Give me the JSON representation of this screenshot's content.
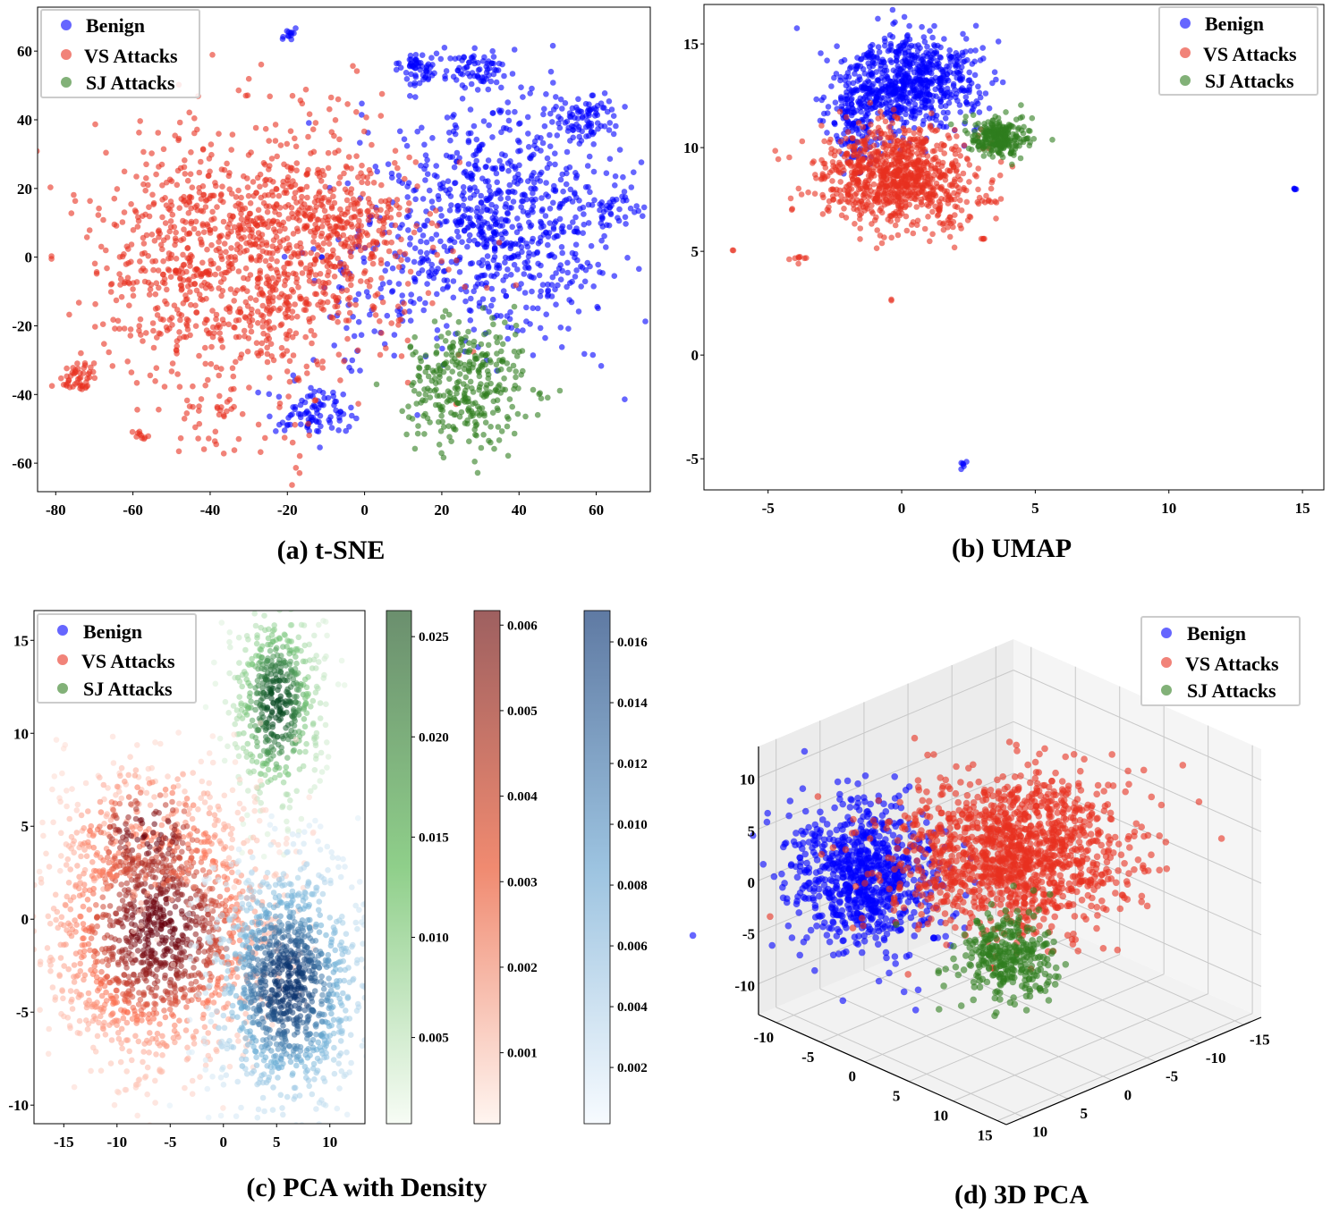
{
  "legend_colors": {
    "Benign": "#0000ff",
    "VS Attacks": "#e8301f",
    "SJ Attacks": "#2e7d1e"
  },
  "chart_data": [
    {
      "type": "scatter",
      "title": "(a) t-SNE",
      "xlim": [
        -84.7,
        74
      ],
      "ylim": [
        -68.3,
        72.8
      ],
      "xticks": [
        -80,
        -60,
        -40,
        -20,
        0,
        20,
        40,
        60
      ],
      "yticks": [
        60,
        40,
        20,
        0,
        -20,
        -40,
        -60
      ],
      "grid": false,
      "legend": {
        "placement": "top-left",
        "entries": [
          "Benign",
          "VS Attacks",
          "SJ Attacks"
        ]
      },
      "series": [
        {
          "name": "Benign",
          "color": "#0000ff",
          "clusters": [
            {
              "center": [
                35,
                10
              ],
              "spread": [
                16,
                17
              ],
              "count": 800
            },
            {
              "center": [
                14,
                55
              ],
              "spread": [
                3,
                3
              ],
              "count": 60
            },
            {
              "center": [
                28,
                55
              ],
              "spread": [
                4,
                3
              ],
              "count": 70
            },
            {
              "center": [
                56,
                40
              ],
              "spread": [
                5,
                4
              ],
              "count": 90
            },
            {
              "center": [
                63,
                15
              ],
              "spread": [
                3,
                2
              ],
              "count": 20
            },
            {
              "center": [
                -20,
                65
              ],
              "spread": [
                1,
                1
              ],
              "count": 12
            },
            {
              "center": [
                -13,
                -45
              ],
              "spread": [
                5,
                4
              ],
              "count": 90
            },
            {
              "center": [
                5,
                -10
              ],
              "spread": [
                12,
                12
              ],
              "count": 80
            }
          ]
        },
        {
          "name": "VS Attacks",
          "color": "#e8301f",
          "clusters": [
            {
              "center": [
                -30,
                0
              ],
              "spread": [
                20,
                19
              ],
              "count": 1200
            },
            {
              "center": [
                -5,
                12
              ],
              "spread": [
                10,
                8
              ],
              "count": 150
            },
            {
              "center": [
                -74,
                -35
              ],
              "spread": [
                2.5,
                2.5
              ],
              "count": 50
            },
            {
              "center": [
                -58,
                -52
              ],
              "spread": [
                1,
                0.8
              ],
              "count": 10
            },
            {
              "center": [
                -38,
                -48
              ],
              "spread": [
                6,
                4
              ],
              "count": 30
            }
          ]
        },
        {
          "name": "SJ Attacks",
          "color": "#2e7d1e",
          "clusters": [
            {
              "center": [
                27,
                -38
              ],
              "spread": [
                8,
                9
              ],
              "count": 320
            }
          ]
        }
      ]
    },
    {
      "type": "scatter",
      "title": "(b) UMAP",
      "xlim": [
        -7.4,
        15.8
      ],
      "ylim": [
        -6.5,
        16.9
      ],
      "xticks": [
        -5,
        0,
        5,
        10,
        15
      ],
      "yticks": [
        15,
        10,
        5,
        0,
        -5
      ],
      "grid": false,
      "legend": {
        "placement": "top-right",
        "entries": [
          "Benign",
          "VS Attacks",
          "SJ Attacks"
        ]
      },
      "series": [
        {
          "name": "Benign",
          "color": "#0000ff",
          "clusters": [
            {
              "center": [
                0.3,
                13.2
              ],
              "spread": [
                1.3,
                1.1
              ],
              "count": 700
            },
            {
              "center": [
                -1.6,
                11
              ],
              "spread": [
                0.6,
                1
              ],
              "count": 150
            },
            {
              "center": [
                14.7,
                8
              ],
              "spread": [
                0.03,
                0.03
              ],
              "count": 5
            },
            {
              "center": [
                2.3,
                -5.2
              ],
              "spread": [
                0.05,
                0.15
              ],
              "count": 6
            }
          ]
        },
        {
          "name": "VS Attacks",
          "color": "#e8301f",
          "clusters": [
            {
              "center": [
                -0.2,
                8.6
              ],
              "spread": [
                1.4,
                1.2
              ],
              "count": 900
            },
            {
              "center": [
                -3.8,
                4.6
              ],
              "spread": [
                0.15,
                0.1
              ],
              "count": 8
            },
            {
              "center": [
                -6.3,
                5
              ],
              "spread": [
                0.03,
                0.03
              ],
              "count": 2
            },
            {
              "center": [
                -4.1,
                7
              ],
              "spread": [
                0.03,
                0.03
              ],
              "count": 2
            },
            {
              "center": [
                -0.4,
                2.7
              ],
              "spread": [
                0.03,
                0.03
              ],
              "count": 2
            },
            {
              "center": [
                3.1,
                5.6
              ],
              "spread": [
                0.1,
                0.05
              ],
              "count": 4
            },
            {
              "center": [
                3.2,
                7.5
              ],
              "spread": [
                0.15,
                0.1
              ],
              "count": 6
            }
          ]
        },
        {
          "name": "SJ Attacks",
          "color": "#2e7d1e",
          "clusters": [
            {
              "center": [
                3.7,
                10.5
              ],
              "spread": [
                0.55,
                0.45
              ],
              "count": 260
            }
          ]
        }
      ]
    },
    {
      "type": "scatter",
      "title": "(c) PCA with Density",
      "xlim": [
        -17.8,
        13.3
      ],
      "ylim": [
        -11,
        16.6
      ],
      "xticks": [
        -15,
        -10,
        -5,
        0,
        5,
        10
      ],
      "yticks": [
        15,
        10,
        5,
        0,
        -5,
        -10
      ],
      "grid": false,
      "legend": {
        "placement": "top-left",
        "entries": [
          "Benign",
          "VS Attacks",
          "SJ Attacks"
        ]
      },
      "series": [
        {
          "name": "SJ Attacks",
          "colormap": "Greens",
          "clusters": [
            {
              "center": [
                5,
                11.5
              ],
              "spread": [
                2.2,
                2.8
              ],
              "count": 500
            }
          ]
        },
        {
          "name": "VS Attacks",
          "colormap": "Reds",
          "clusters": [
            {
              "center": [
                -6,
                -0.5
              ],
              "spread": [
                5.5,
                3.8
              ],
              "count": 1400
            },
            {
              "center": [
                -7,
                4.5
              ],
              "spread": [
                4,
                2
              ],
              "count": 250
            }
          ]
        },
        {
          "name": "Benign",
          "colormap": "Blues",
          "clusters": [
            {
              "center": [
                6,
                -3.5
              ],
              "spread": [
                3.6,
                3.4
              ],
              "count": 1100
            }
          ]
        }
      ],
      "colorbars": [
        {
          "colormap": "Greens",
          "range": [
            0.0007,
            0.0263
          ],
          "ticks": [
            "0.025",
            "0.020",
            "0.015",
            "0.010",
            "0.005"
          ]
        },
        {
          "colormap": "Reds",
          "range": [
            0.00017,
            0.00617
          ],
          "ticks": [
            "0.006",
            "0.005",
            "0.004",
            "0.003",
            "0.002",
            "0.001"
          ]
        },
        {
          "colormap": "Blues",
          "range": [
            0.00015,
            0.01703
          ],
          "ticks": [
            "0.016",
            "0.014",
            "0.012",
            "0.010",
            "0.008",
            "0.006",
            "0.004",
            "0.002"
          ]
        }
      ]
    },
    {
      "type": "scatter3d",
      "title": "(d) 3D PCA",
      "xlim": [
        -12,
        16
      ],
      "ylim": [
        -17,
        12
      ],
      "zlim": [
        -13,
        13
      ],
      "xticks": [
        -10,
        -5,
        0,
        5,
        10,
        15
      ],
      "yticks": [
        -15,
        -10,
        -5,
        0,
        5,
        10
      ],
      "zticks": [
        -10,
        -5,
        0,
        5,
        10
      ],
      "grid": true,
      "legend": {
        "placement": "top-right",
        "entries": [
          "Benign",
          "VS Attacks",
          "SJ Attacks"
        ]
      },
      "series": [
        {
          "name": "Benign",
          "color": "#0000ff",
          "clusters": [
            {
              "center": [
                -6,
                6,
                0.5
              ],
              "spread": [
                3,
                3,
                3.2
              ],
              "count": 800
            }
          ]
        },
        {
          "name": "VS Attacks",
          "color": "#e8301f",
          "clusters": [
            {
              "center": [
                0,
                -5,
                1
              ],
              "spread": [
                4.5,
                5,
                3
              ],
              "count": 1300
            }
          ]
        },
        {
          "name": "SJ Attacks",
          "color": "#2e7d1e",
          "clusters": [
            {
              "center": [
                5,
                1,
                -5
              ],
              "spread": [
                2,
                2.2,
                1.8
              ],
              "count": 300
            }
          ]
        }
      ]
    }
  ]
}
